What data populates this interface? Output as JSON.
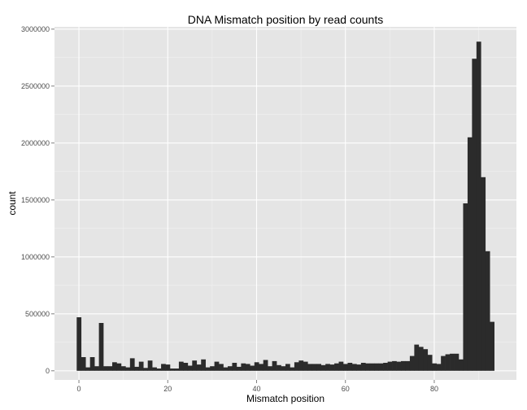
{
  "chart_data": {
    "type": "bar",
    "title": "DNA Mismatch position by read counts",
    "xlabel": "Mismatch position",
    "ylabel": "count",
    "xlim": [
      -5.5,
      98.5
    ],
    "ylim": [
      -80000,
      3020000
    ],
    "x_ticks": [
      0,
      20,
      40,
      60,
      80
    ],
    "x_tick_labels": [
      "0",
      "20",
      "40",
      "60",
      "80"
    ],
    "y_ticks": [
      0,
      500000,
      1000000,
      1500000,
      2000000,
      2500000,
      3000000
    ],
    "y_tick_labels": [
      "0",
      "500000",
      "1000000",
      "1500000",
      "2000000",
      "2500000",
      "3000000"
    ],
    "grid": true,
    "background": "#e5e5e5",
    "bar_color": "#2b2b2b",
    "x": [
      0,
      1,
      2,
      3,
      4,
      5,
      6,
      7,
      8,
      9,
      10,
      11,
      12,
      13,
      14,
      15,
      16,
      17,
      18,
      19,
      20,
      21,
      22,
      23,
      24,
      25,
      26,
      27,
      28,
      29,
      30,
      31,
      32,
      33,
      34,
      35,
      36,
      37,
      38,
      39,
      40,
      41,
      42,
      43,
      44,
      45,
      46,
      47,
      48,
      49,
      50,
      51,
      52,
      53,
      54,
      55,
      56,
      57,
      58,
      59,
      60,
      61,
      62,
      63,
      64,
      65,
      66,
      67,
      68,
      69,
      70,
      71,
      72,
      73,
      74,
      75,
      76,
      77,
      78,
      79,
      80,
      81,
      82,
      83,
      84,
      85,
      86,
      87,
      88,
      89,
      90,
      91,
      92,
      93,
      94
    ],
    "values": [
      470000,
      120000,
      30000,
      120000,
      40000,
      420000,
      40000,
      40000,
      75000,
      65000,
      40000,
      30000,
      110000,
      35000,
      80000,
      25000,
      90000,
      30000,
      20000,
      60000,
      55000,
      20000,
      20000,
      80000,
      70000,
      45000,
      90000,
      55000,
      100000,
      30000,
      40000,
      80000,
      60000,
      30000,
      40000,
      70000,
      35000,
      65000,
      60000,
      45000,
      75000,
      60000,
      95000,
      40000,
      85000,
      50000,
      40000,
      60000,
      30000,
      75000,
      90000,
      80000,
      60000,
      60000,
      60000,
      50000,
      60000,
      55000,
      65000,
      80000,
      60000,
      70000,
      60000,
      55000,
      70000,
      65000,
      65000,
      65000,
      65000,
      70000,
      80000,
      85000,
      80000,
      85000,
      85000,
      130000,
      230000,
      210000,
      190000,
      140000,
      65000,
      60000,
      130000,
      145000,
      150000,
      150000,
      100000,
      1470000,
      2050000,
      2740000,
      2890000,
      1700000,
      1050000,
      430000,
      0
    ]
  }
}
